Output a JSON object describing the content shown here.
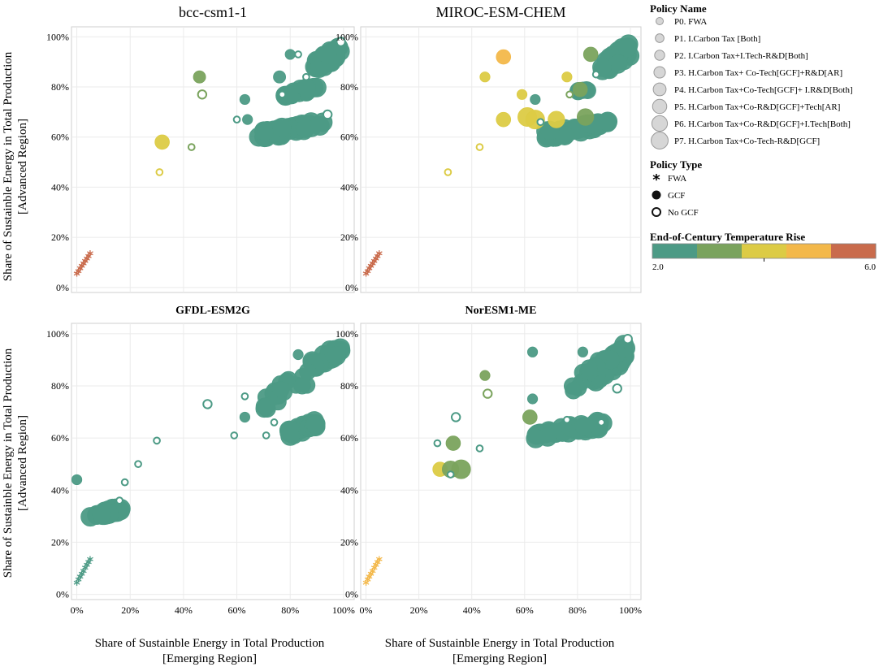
{
  "figure": {
    "y_axis_label_line1": "Share of Sustainble Energy in Total Production",
    "y_axis_label_line2": "[Advanced Region]",
    "x_axis_label_line1": "Share of Sustainble Energy in Total Production",
    "x_axis_label_line2": "[Emerging Region]"
  },
  "colors": {
    "temp_scale": [
      "#4c9a85",
      "#7aa35d",
      "#dccb45",
      "#f3b84a",
      "#c96b4c"
    ],
    "panel_border": "#cfcfcf",
    "grid": "#ebebeb"
  },
  "legend": {
    "policy_name_title": "Policy Name",
    "policy_names": [
      "P0. FWA",
      "P1. I.Carbon Tax [Both]",
      "P2. I.Carbon Tax+I.Tech-R&D[Both]",
      "P3. H.Carbon Tax+ Co-Tech[GCF]+R&D[AR]",
      "P4. H.Carbon Tax+Co-Tech[GCF]+ I.R&D[Both]",
      "P5. H.Carbon Tax+Co-R&D[GCF]+Tech[AR]",
      "P6. H.Carbon Tax+Co-R&D[GCF]+I.Tech[Both]",
      "P7. H.Carbon Tax+Co-Tech-R&D[GCF]"
    ],
    "policy_type_title": "Policy Type",
    "policy_types": [
      {
        "label": "FWA",
        "symbol": "asterisk"
      },
      {
        "label": "GCF",
        "symbol": "filled-circle"
      },
      {
        "label": "No GCF",
        "symbol": "open-circle"
      }
    ],
    "temp_title": "End-of-Century Temperature Rise",
    "temp_min_label": "2.0",
    "temp_max_label": "6.0",
    "temp_min": 2.0,
    "temp_max": 6.0
  },
  "chart_data": [
    {
      "type": "scatter",
      "title": "bcc-csm1-1",
      "xlabel": "Share of Sustainble Energy in Total Production [Emerging Region]",
      "ylabel": "Share of Sustainble Energy in Total Production [Advanced Region]",
      "xlim": [
        -2,
        104
      ],
      "ylim": [
        -2,
        104
      ],
      "xticks": [
        0,
        20,
        40,
        60,
        80,
        100
      ],
      "xtick_labels": [
        "0%",
        "20%",
        "40%",
        "60%",
        "80%",
        "100%"
      ],
      "yticks": [
        0,
        20,
        40,
        60,
        80,
        100
      ],
      "ytick_labels": [
        "0%",
        "20%",
        "40%",
        "60%",
        "80%",
        "100%"
      ],
      "show_x_ticklabels": false,
      "fwa_trail": {
        "from": [
          0,
          5
        ],
        "to": [
          5,
          13
        ],
        "temp": 5.8
      },
      "clusters": [
        {
          "x": [
            88,
            99
          ],
          "y": [
            85,
            97
          ],
          "n": 36,
          "size": 6,
          "type": "GCF",
          "temp": 2.1
        },
        {
          "x": [
            78,
            90
          ],
          "y": [
            75,
            81
          ],
          "n": 14,
          "size": 6,
          "type": "GCF",
          "temp": 2.1
        },
        {
          "x": [
            68,
            93
          ],
          "y": [
            59,
            67
          ],
          "n": 38,
          "size": 6,
          "type": "GCF",
          "temp": 2.1
        }
      ],
      "points": [
        {
          "x": 46,
          "y": 84,
          "size": 3,
          "type": "GCF",
          "temp": 2.9
        },
        {
          "x": 47,
          "y": 77,
          "size": 2,
          "type": "No GCF",
          "temp": 2.9
        },
        {
          "x": 32,
          "y": 58,
          "size": 4,
          "type": "GCF",
          "temp": 3.8
        },
        {
          "x": 31,
          "y": 46,
          "size": 1,
          "type": "No GCF",
          "temp": 3.8
        },
        {
          "x": 43,
          "y": 56,
          "size": 1,
          "type": "No GCF",
          "temp": 2.9
        },
        {
          "x": 63,
          "y": 75,
          "size": 2,
          "type": "GCF",
          "temp": 2.1
        },
        {
          "x": 64,
          "y": 67,
          "size": 2,
          "type": "GCF",
          "temp": 2.6
        },
        {
          "x": 60,
          "y": 67,
          "size": 1,
          "type": "No GCF",
          "temp": 2.1
        },
        {
          "x": 76,
          "y": 84,
          "size": 3,
          "type": "GCF",
          "temp": 2.1
        },
        {
          "x": 80,
          "y": 93,
          "size": 2,
          "type": "GCF",
          "temp": 2.1
        },
        {
          "x": 83,
          "y": 93,
          "size": 1,
          "type": "No GCF",
          "temp": 2.1
        },
        {
          "x": 86,
          "y": 84,
          "size": 1,
          "type": "No GCF",
          "temp": 2.1
        },
        {
          "x": 77,
          "y": 77,
          "size": 1,
          "type": "No GCF",
          "temp": 2.1
        },
        {
          "x": 94,
          "y": 69,
          "size": 2,
          "type": "No GCF",
          "temp": 2.1
        },
        {
          "x": 99,
          "y": 98,
          "size": 2,
          "type": "No GCF",
          "temp": 2.1
        }
      ]
    },
    {
      "type": "scatter",
      "title": "MIROC-ESM-CHEM",
      "xlim": [
        -2,
        104
      ],
      "ylim": [
        -2,
        104
      ],
      "xticks": [
        0,
        20,
        40,
        60,
        80,
        100
      ],
      "xtick_labels": [
        "0%",
        "20%",
        "40%",
        "60%",
        "80%",
        "100%"
      ],
      "yticks": [
        0,
        20,
        40,
        60,
        80,
        100
      ],
      "ytick_labels": [
        "0%",
        "20%",
        "40%",
        "60%",
        "80%",
        "100%"
      ],
      "show_x_ticklabels": false,
      "fwa_trail": {
        "from": [
          0,
          5
        ],
        "to": [
          5,
          13
        ],
        "temp": 5.8
      },
      "clusters": [
        {
          "x": [
            89,
            100
          ],
          "y": [
            84,
            98
          ],
          "n": 32,
          "size": 6,
          "type": "GCF",
          "temp": 2.1
        },
        {
          "x": 79,
          "y": [
            78,
            79
          ],
          "n": 6,
          "size": 5,
          "type": "GCF",
          "temp": 2.1
        },
        {
          "x": [
            67,
            92
          ],
          "y": [
            59,
            67
          ],
          "n": 36,
          "size": 6,
          "type": "GCF",
          "temp": 2.1
        }
      ],
      "points": [
        {
          "x": 52,
          "y": 92,
          "size": 4,
          "type": "GCF",
          "temp": 4.9
        },
        {
          "x": 45,
          "y": 84,
          "size": 2,
          "type": "GCF",
          "temp": 3.8
        },
        {
          "x": 76,
          "y": 84,
          "size": 2,
          "type": "GCF",
          "temp": 3.8
        },
        {
          "x": 59,
          "y": 77,
          "size": 2,
          "type": "GCF",
          "temp": 3.8
        },
        {
          "x": 77,
          "y": 77,
          "size": 1,
          "type": "No GCF",
          "temp": 2.9
        },
        {
          "x": 52,
          "y": 67,
          "size": 4,
          "type": "GCF",
          "temp": 3.8
        },
        {
          "x": 61,
          "y": 68,
          "size": 6,
          "type": "GCF",
          "temp": 3.8
        },
        {
          "x": 64,
          "y": 67,
          "size": 6,
          "type": "GCF",
          "temp": 3.8
        },
        {
          "x": 72,
          "y": 67,
          "size": 5,
          "type": "GCF",
          "temp": 3.8
        },
        {
          "x": 83,
          "y": 68,
          "size": 5,
          "type": "GCF",
          "temp": 2.9
        },
        {
          "x": 64,
          "y": 75,
          "size": 2,
          "type": "GCF",
          "temp": 2.1
        },
        {
          "x": 66,
          "y": 66,
          "size": 1,
          "type": "No GCF",
          "temp": 2.1
        },
        {
          "x": 43,
          "y": 56,
          "size": 1,
          "type": "No GCF",
          "temp": 3.8
        },
        {
          "x": 31,
          "y": 46,
          "size": 1,
          "type": "No GCF",
          "temp": 3.8
        },
        {
          "x": 85,
          "y": 93,
          "size": 4,
          "type": "GCF",
          "temp": 2.9
        },
        {
          "x": 81,
          "y": 79,
          "size": 4,
          "type": "GCF",
          "temp": 2.9
        },
        {
          "x": 87,
          "y": 85,
          "size": 1,
          "type": "No GCF",
          "temp": 2.1
        }
      ]
    },
    {
      "type": "scatter",
      "title": "GFDL-ESM2G",
      "xlim": [
        -2,
        104
      ],
      "ylim": [
        -2,
        104
      ],
      "xticks": [
        0,
        20,
        40,
        60,
        80,
        100
      ],
      "xtick_labels": [
        "0%",
        "20%",
        "40%",
        "60%",
        "80%",
        "100%"
      ],
      "yticks": [
        0,
        20,
        40,
        60,
        80,
        100
      ],
      "ytick_labels": [
        "0%",
        "20%",
        "40%",
        "60%",
        "80%",
        "100%"
      ],
      "show_x_ticklabels": true,
      "fwa_trail": {
        "from": [
          0,
          4
        ],
        "to": [
          5,
          13
        ],
        "temp": 2.6
      },
      "clusters": [
        {
          "x": [
            88,
            99
          ],
          "y": [
            86,
            96
          ],
          "n": 24,
          "size": 6,
          "type": "GCF",
          "temp": 2.1
        },
        {
          "x": [
            70,
            88
          ],
          "y": [
            70,
            88
          ],
          "n": 20,
          "size": 5,
          "type": "GCF",
          "temp": 2.1
        },
        {
          "x": [
            78,
            90
          ],
          "y": [
            60,
            67
          ],
          "n": 24,
          "size": 6,
          "type": "GCF",
          "temp": 2.1
        },
        {
          "x": [
            5,
            17
          ],
          "y": [
            29,
            34
          ],
          "n": 22,
          "size": 6,
          "type": "GCF",
          "temp": 2.7
        }
      ],
      "points": [
        {
          "x": 0,
          "y": 44,
          "size": 2,
          "type": "GCF",
          "temp": 2.7
        },
        {
          "x": 18,
          "y": 43,
          "size": 1,
          "type": "No GCF",
          "temp": 2.1
        },
        {
          "x": 16,
          "y": 36,
          "size": 1,
          "type": "No GCF",
          "temp": 2.1
        },
        {
          "x": 23,
          "y": 50,
          "size": 1,
          "type": "No GCF",
          "temp": 2.1
        },
        {
          "x": 30,
          "y": 59,
          "size": 1,
          "type": "No GCF",
          "temp": 2.1
        },
        {
          "x": 49,
          "y": 73,
          "size": 2,
          "type": "No GCF",
          "temp": 2.1
        },
        {
          "x": 59,
          "y": 61,
          "size": 1,
          "type": "No GCF",
          "temp": 2.1
        },
        {
          "x": 63,
          "y": 68,
          "size": 2,
          "type": "GCF",
          "temp": 2.1
        },
        {
          "x": 63,
          "y": 76,
          "size": 1,
          "type": "No GCF",
          "temp": 2.1
        },
        {
          "x": 71,
          "y": 61,
          "size": 1,
          "type": "No GCF",
          "temp": 2.1
        },
        {
          "x": 74,
          "y": 66,
          "size": 1,
          "type": "No GCF",
          "temp": 2.1
        },
        {
          "x": 83,
          "y": 92,
          "size": 2,
          "type": "GCF",
          "temp": 2.1
        }
      ]
    },
    {
      "type": "scatter",
      "title": "NorESM1-ME",
      "xlim": [
        -2,
        104
      ],
      "ylim": [
        -2,
        104
      ],
      "xticks": [
        0,
        20,
        40,
        60,
        80,
        100
      ],
      "xtick_labels": [
        "0%",
        "20%",
        "40%",
        "60%",
        "80%",
        "100%"
      ],
      "yticks": [
        0,
        20,
        40,
        60,
        80,
        100
      ],
      "ytick_labels": [
        "0%",
        "20%",
        "40%",
        "60%",
        "80%",
        "100%"
      ],
      "show_x_ticklabels": true,
      "fwa_trail": {
        "from": [
          0,
          4
        ],
        "to": [
          5,
          13
        ],
        "temp": 4.9
      },
      "clusters": [
        {
          "x": [
            86,
            99
          ],
          "y": [
            80,
            97
          ],
          "n": 40,
          "size": 6,
          "type": "GCF",
          "temp": 2.1
        },
        {
          "x": [
            76,
            88
          ],
          "y": [
            74,
            90
          ],
          "n": 14,
          "size": 5,
          "type": "GCF",
          "temp": 2.1
        },
        {
          "x": [
            62,
            90
          ],
          "y": [
            59,
            67
          ],
          "n": 34,
          "size": 6,
          "type": "GCF",
          "temp": 2.1
        }
      ],
      "points": [
        {
          "x": 63,
          "y": 93,
          "size": 2,
          "type": "GCF",
          "temp": 2.1
        },
        {
          "x": 45,
          "y": 84,
          "size": 2,
          "type": "GCF",
          "temp": 2.9
        },
        {
          "x": 46,
          "y": 77,
          "size": 2,
          "type": "No GCF",
          "temp": 2.9
        },
        {
          "x": 34,
          "y": 68,
          "size": 2,
          "type": "No GCF",
          "temp": 2.1
        },
        {
          "x": 33,
          "y": 58,
          "size": 4,
          "type": "GCF",
          "temp": 2.9
        },
        {
          "x": 27,
          "y": 58,
          "size": 1,
          "type": "No GCF",
          "temp": 2.1
        },
        {
          "x": 43,
          "y": 56,
          "size": 1,
          "type": "No GCF",
          "temp": 2.1
        },
        {
          "x": 28,
          "y": 48,
          "size": 4,
          "type": "GCF",
          "temp": 3.8
        },
        {
          "x": 32,
          "y": 48,
          "size": 5,
          "type": "GCF",
          "temp": 2.9
        },
        {
          "x": 36,
          "y": 48,
          "size": 6,
          "type": "GCF",
          "temp": 2.9
        },
        {
          "x": 32,
          "y": 46,
          "size": 1,
          "type": "No GCF",
          "temp": 2.1
        },
        {
          "x": 62,
          "y": 68,
          "size": 4,
          "type": "GCF",
          "temp": 2.9
        },
        {
          "x": 63,
          "y": 75,
          "size": 2,
          "type": "GCF",
          "temp": 2.1
        },
        {
          "x": 76,
          "y": 67,
          "size": 1,
          "type": "No GCF",
          "temp": 2.1
        },
        {
          "x": 82,
          "y": 93,
          "size": 2,
          "type": "GCF",
          "temp": 2.1
        },
        {
          "x": 95,
          "y": 79,
          "size": 2,
          "type": "No GCF",
          "temp": 2.1
        },
        {
          "x": 89,
          "y": 66,
          "size": 1,
          "type": "No GCF",
          "temp": 2.1
        },
        {
          "x": 99,
          "y": 98,
          "size": 2,
          "type": "No GCF",
          "temp": 2.1
        }
      ]
    }
  ]
}
